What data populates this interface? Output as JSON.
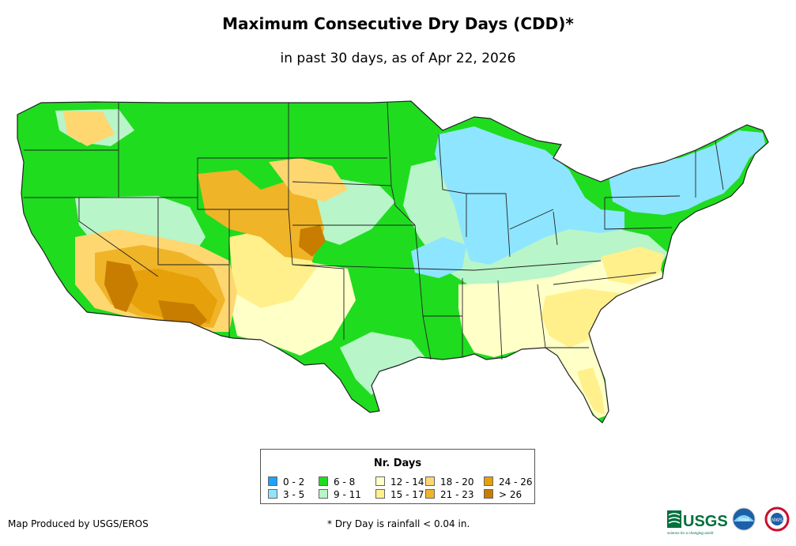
{
  "title": "Maximum Consecutive Dry Days (CDD)*",
  "subtitle": "in past 30 days, as of Apr 22, 2026",
  "legend": {
    "title": "Nr. Days",
    "items": [
      {
        "label": "0 - 2",
        "color": "#1aa3ff"
      },
      {
        "label": "3 - 5",
        "color": "#8ee5ff"
      },
      {
        "label": "6 - 8",
        "color": "#1fdc1f"
      },
      {
        "label": "9 - 11",
        "color": "#b8f5c8"
      },
      {
        "label": "12 - 14",
        "color": "#ffffc8"
      },
      {
        "label": "15 - 17",
        "color": "#fff08c"
      },
      {
        "label": "18 - 20",
        "color": "#ffd770"
      },
      {
        "label": "21 - 23",
        "color": "#f0b428"
      },
      {
        "label": "24 - 26",
        "color": "#e6a00a"
      },
      {
        "label": "> 26",
        "color": "#c87d00"
      }
    ]
  },
  "credit": "Map Produced by USGS/EROS",
  "footnote": "* Dry Day is rainfall < 0.04 in.",
  "logos": {
    "usgs_text": "USGS",
    "usgs_tagline": "science for a changing world",
    "noaa_text": "noaa",
    "nws_text": "NWS"
  }
}
